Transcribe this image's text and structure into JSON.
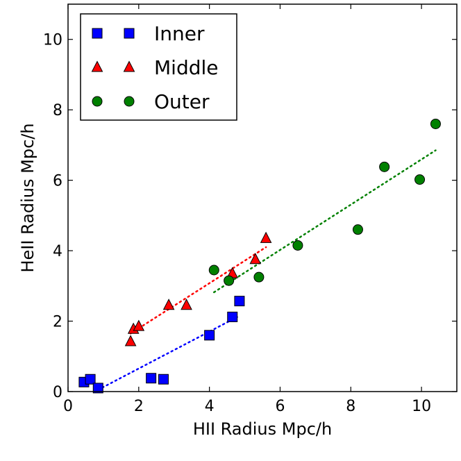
{
  "chart_data": {
    "type": "scatter",
    "title": "",
    "xlabel": "HII Radius Mpc/h",
    "ylabel": "HeII Radius Mpc/h",
    "xlim": [
      0,
      11
    ],
    "ylim": [
      0,
      11
    ],
    "xticks": [
      0,
      2,
      4,
      6,
      8,
      10
    ],
    "yticks": [
      0,
      2,
      4,
      6,
      8,
      10
    ],
    "grid": false,
    "legend_position": "top-left",
    "series": [
      {
        "name": "Inner",
        "marker": "square",
        "color": "#0000ff",
        "fit_color": "#0000ff",
        "points": [
          {
            "x": 0.45,
            "y": 0.27
          },
          {
            "x": 0.63,
            "y": 0.35
          },
          {
            "x": 0.85,
            "y": 0.1
          },
          {
            "x": 2.35,
            "y": 0.38
          },
          {
            "x": 2.7,
            "y": 0.35
          },
          {
            "x": 4.0,
            "y": 1.6
          },
          {
            "x": 4.65,
            "y": 2.12
          },
          {
            "x": 4.85,
            "y": 2.57
          }
        ],
        "fit_line": [
          {
            "x": 0.85,
            "y": 0.05
          },
          {
            "x": 4.85,
            "y": 2.15
          }
        ]
      },
      {
        "name": "Middle",
        "marker": "triangle",
        "color": "#ff0000",
        "fit_color": "#ff0000",
        "points": [
          {
            "x": 1.77,
            "y": 1.42
          },
          {
            "x": 1.85,
            "y": 1.77
          },
          {
            "x": 2.0,
            "y": 1.85
          },
          {
            "x": 2.85,
            "y": 2.45
          },
          {
            "x": 3.35,
            "y": 2.45
          },
          {
            "x": 4.65,
            "y": 3.35
          },
          {
            "x": 5.3,
            "y": 3.75
          },
          {
            "x": 5.6,
            "y": 4.35
          }
        ],
        "fit_line": [
          {
            "x": 1.77,
            "y": 1.65
          },
          {
            "x": 5.6,
            "y": 4.1
          }
        ]
      },
      {
        "name": "Outer",
        "marker": "circle",
        "color": "#008000",
        "fit_color": "#008000",
        "points": [
          {
            "x": 4.13,
            "y": 3.45
          },
          {
            "x": 4.55,
            "y": 3.15
          },
          {
            "x": 5.4,
            "y": 3.25
          },
          {
            "x": 6.5,
            "y": 4.15
          },
          {
            "x": 8.2,
            "y": 4.6
          },
          {
            "x": 8.95,
            "y": 6.38
          },
          {
            "x": 9.95,
            "y": 6.02
          },
          {
            "x": 10.4,
            "y": 7.6
          }
        ],
        "fit_line": [
          {
            "x": 4.13,
            "y": 2.82
          },
          {
            "x": 10.4,
            "y": 6.85
          }
        ]
      }
    ]
  }
}
